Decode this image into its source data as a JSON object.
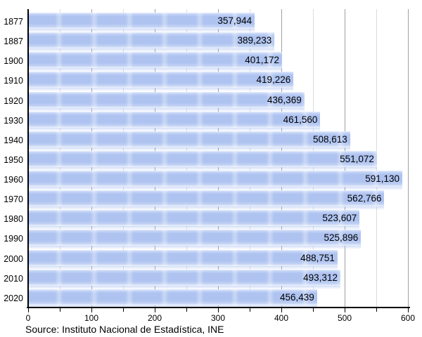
{
  "chart_data": {
    "type": "bar",
    "orientation": "horizontal",
    "title": "",
    "categories": [
      "1877",
      "1887",
      "1900",
      "1910",
      "1920",
      "1930",
      "1940",
      "1950",
      "1960",
      "1970",
      "1980",
      "1990",
      "2000",
      "2010",
      "2020"
    ],
    "values": [
      357944,
      389233,
      401172,
      419226,
      436369,
      461560,
      508613,
      551072,
      591130,
      562766,
      523607,
      525896,
      488751,
      493312,
      456439
    ],
    "value_labels": [
      "357,944",
      "389,233",
      "401,172",
      "419,226",
      "436,369",
      "461,560",
      "508,613",
      "551,072",
      "591,130",
      "562,766",
      "523,607",
      "525,896",
      "488,751",
      "493,312",
      "456,439"
    ],
    "x_axis": {
      "min": 0,
      "max": 600,
      "major_tick_values": [
        0,
        100,
        200,
        300,
        400,
        500,
        600
      ],
      "major_tick_labels": [
        "0",
        "100",
        "200",
        "300",
        "400",
        "500",
        "600"
      ],
      "minor_tick_step": 50,
      "values_in_thousands": true
    },
    "grid": "vertical, major at 100 and minor at 50, behind bars",
    "legend": "none",
    "source": "Source: Instituto Nacional de Estadística, INE",
    "colors": {
      "bar": "#aec3f0",
      "bar_highlight": "#e9f0fc",
      "bar_fade": "#edf3fd",
      "grid_major": "#a0a0a0",
      "grid_minor": "#dcdcdc",
      "axis": "#000000",
      "text": "#000000"
    }
  }
}
